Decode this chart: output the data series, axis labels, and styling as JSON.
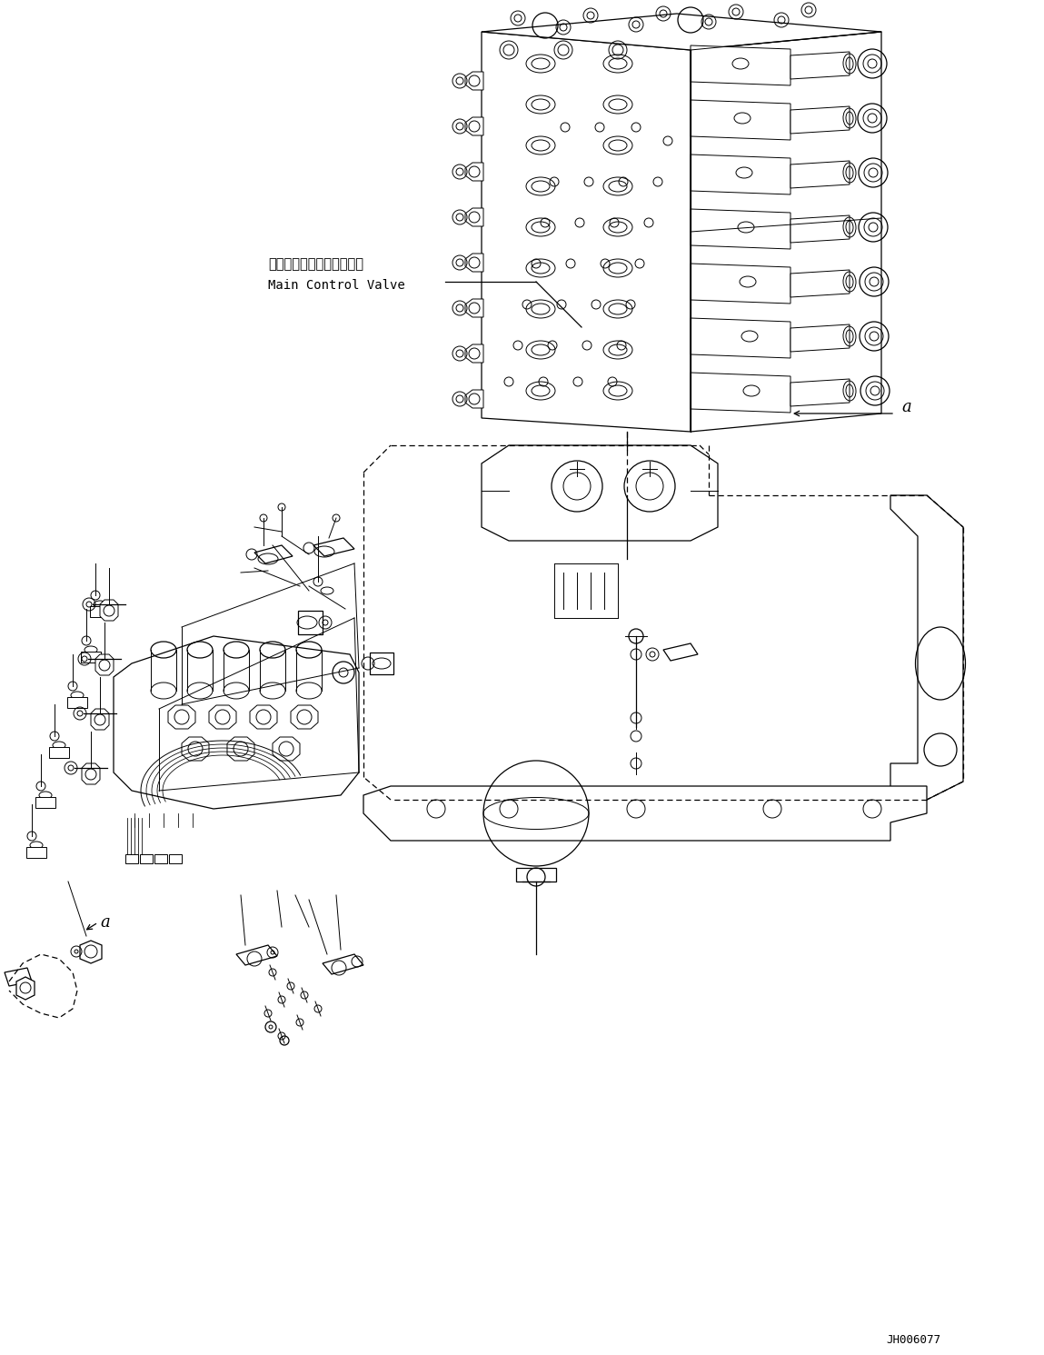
{
  "background_color": "#ffffff",
  "line_color": "#000000",
  "text_color": "#000000",
  "diagram_code": "JH006077",
  "label_japanese": "メインコントロールバルブ",
  "label_english": "Main Control Valve",
  "label_a": "a",
  "figsize": [
    11.49,
    14.91
  ],
  "dpi": 100
}
